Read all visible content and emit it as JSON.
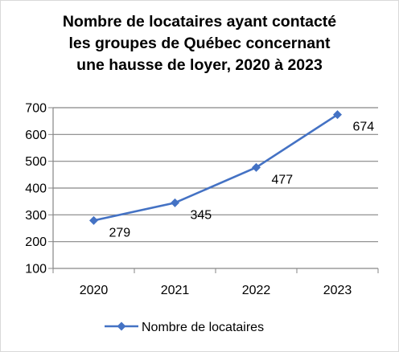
{
  "chart_data": {
    "type": "line",
    "title_lines": [
      "Nombre de locataires ayant contacté",
      "les groupes de Québec concernant",
      "une hausse de loyer, 2020 à 2023"
    ],
    "categories": [
      "2020",
      "2021",
      "2022",
      "2023"
    ],
    "series": [
      {
        "name": "Nombre de locataires",
        "values": [
          279,
          345,
          477,
          674
        ],
        "color": "#4472c4",
        "marker": "diamond"
      }
    ],
    "data_labels": [
      "279",
      "345",
      "477",
      "674"
    ],
    "ylim": [
      100,
      700
    ],
    "yticks": [
      100,
      200,
      300,
      400,
      500,
      600,
      700
    ],
    "ytick_labels": [
      "100",
      "200",
      "300",
      "400",
      "500",
      "600",
      "700"
    ],
    "grid": true,
    "legend_position": "bottom"
  }
}
